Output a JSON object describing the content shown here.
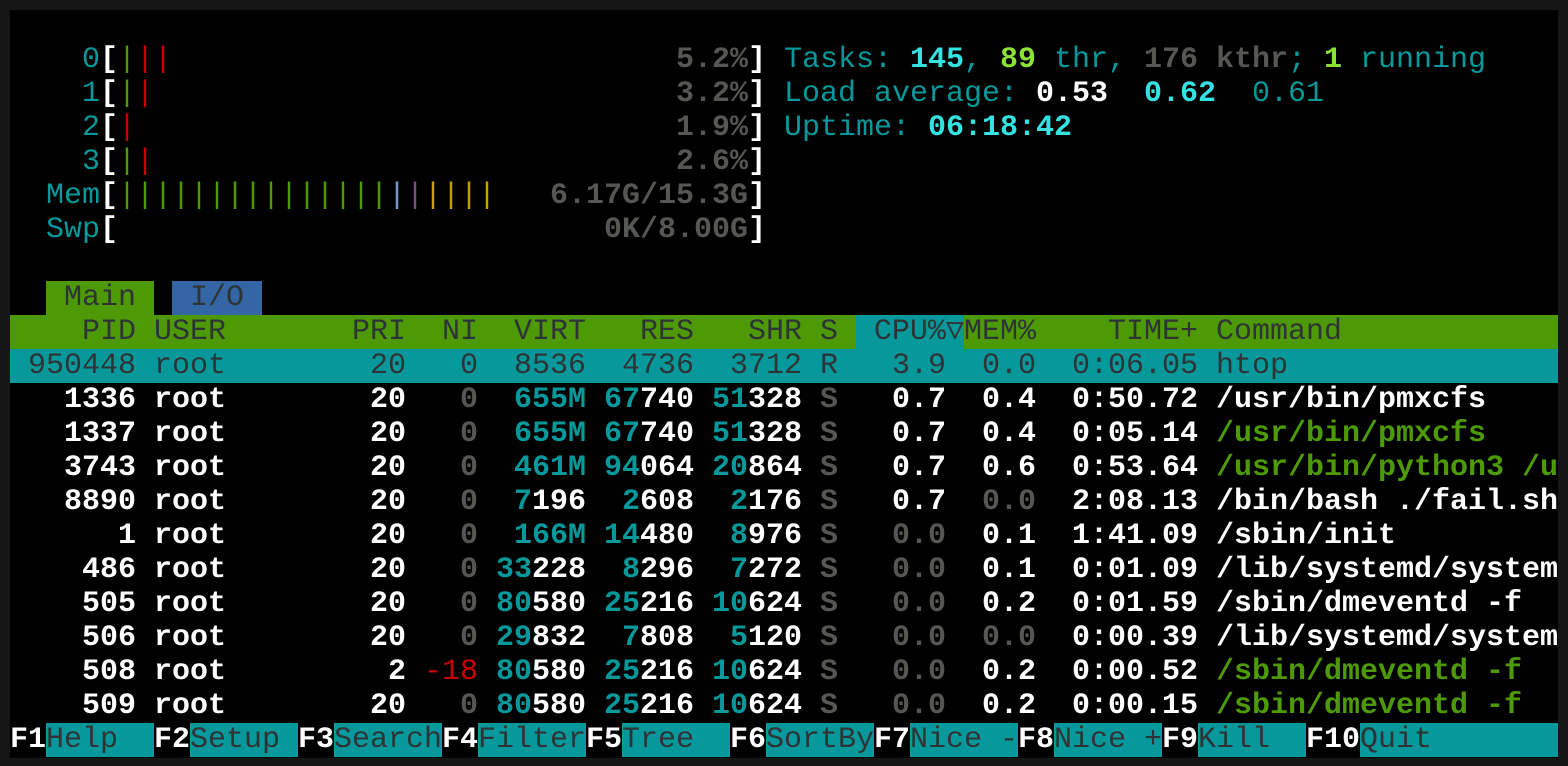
{
  "colors": {
    "teal": "#06989a",
    "green": "#4e9a06",
    "bright_cyan": "#34e2e2",
    "bright_green": "#8ae234",
    "red": "#cc0000",
    "gray": "#555753",
    "tab_blue": "#3465a4"
  },
  "meters": {
    "cpus": [
      {
        "label": "0",
        "value": "5.2%",
        "bars": [
          "green",
          "red",
          "red"
        ]
      },
      {
        "label": "1",
        "value": "3.2%",
        "bars": [
          "green",
          "red"
        ]
      },
      {
        "label": "2",
        "value": "1.9%",
        "bars": [
          "red"
        ]
      },
      {
        "label": "3",
        "value": "2.6%",
        "bars": [
          "green",
          "red"
        ]
      }
    ],
    "mem": {
      "label": "Mem",
      "value": "6.17G/15.3G",
      "bars": [
        "green",
        "green",
        "green",
        "green",
        "green",
        "green",
        "green",
        "green",
        "green",
        "green",
        "green",
        "green",
        "green",
        "green",
        "green",
        "blue",
        "purple",
        "orange",
        "orange",
        "orange",
        "orange"
      ]
    },
    "swp": {
      "label": "Swp",
      "value": "0K/8.00G",
      "bars": []
    }
  },
  "summary": {
    "tasks_label": "Tasks: ",
    "tasks": "145",
    "sep1": ", ",
    "threads": "89",
    "thr_label": " thr, ",
    "kthreads": "176",
    "kthr_label": " kthr",
    "sep2": "; ",
    "running": "1",
    "running_label": " running",
    "load_label": "Load average: ",
    "load1": "0.53",
    "load5": "0.62",
    "load15": "0.61",
    "uptime_label": "Uptime: ",
    "uptime": "06:18:42"
  },
  "tabs": [
    {
      "label": "Main",
      "active": true
    },
    {
      "label": "I/O",
      "active": false
    }
  ],
  "columns": {
    "pid": "PID",
    "user": "USER",
    "pri": "PRI",
    "ni": "NI",
    "virt": "VIRT",
    "res": "RES",
    "shr": "SHR",
    "s": "S",
    "cpu": "CPU%▽",
    "mem": "MEM%",
    "time": "TIME+",
    "command": "Command"
  },
  "sort_column": "cpu",
  "processes": [
    {
      "pid": "950448",
      "user": "root",
      "pri": "20",
      "ni": "0",
      "virt": "8536",
      "res": "4736",
      "shr": "3712",
      "s": "R",
      "cpu": "3.9",
      "mem": "0.0",
      "time": "0:06.05",
      "command": "htop",
      "selected": true,
      "thread": false
    },
    {
      "pid": "1336",
      "user": "root",
      "pri": "20",
      "ni": "0",
      "virt": "655M",
      "res": "67740",
      "shr": "51328",
      "s": "S",
      "cpu": "0.7",
      "mem": "0.4",
      "time": "0:50.72",
      "command": "/usr/bin/pmxcfs",
      "thread": false
    },
    {
      "pid": "1337",
      "user": "root",
      "pri": "20",
      "ni": "0",
      "virt": "655M",
      "res": "67740",
      "shr": "51328",
      "s": "S",
      "cpu": "0.7",
      "mem": "0.4",
      "time": "0:05.14",
      "command": "/usr/bin/pmxcfs",
      "thread": true
    },
    {
      "pid": "3743",
      "user": "root",
      "pri": "20",
      "ni": "0",
      "virt": "461M",
      "res": "94064",
      "shr": "20864",
      "s": "S",
      "cpu": "0.7",
      "mem": "0.6",
      "time": "0:53.64",
      "command": "/usr/bin/python3 /u",
      "thread": true
    },
    {
      "pid": "8890",
      "user": "root",
      "pri": "20",
      "ni": "0",
      "virt": "7196",
      "res": "2608",
      "shr": "2176",
      "s": "S",
      "cpu": "0.7",
      "mem": "0.0",
      "time": "2:08.13",
      "command": "/bin/bash ./fail.sh",
      "thread": false
    },
    {
      "pid": "1",
      "user": "root",
      "pri": "20",
      "ni": "0",
      "virt": "166M",
      "res": "14480",
      "shr": "8976",
      "s": "S",
      "cpu": "0.0",
      "mem": "0.1",
      "time": "1:41.09",
      "command": "/sbin/init",
      "thread": false
    },
    {
      "pid": "486",
      "user": "root",
      "pri": "20",
      "ni": "0",
      "virt": "33228",
      "res": "8296",
      "shr": "7272",
      "s": "S",
      "cpu": "0.0",
      "mem": "0.1",
      "time": "0:01.09",
      "command": "/lib/systemd/system",
      "thread": false
    },
    {
      "pid": "505",
      "user": "root",
      "pri": "20",
      "ni": "0",
      "virt": "80580",
      "res": "25216",
      "shr": "10624",
      "s": "S",
      "cpu": "0.0",
      "mem": "0.2",
      "time": "0:01.59",
      "command": "/sbin/dmeventd -f",
      "thread": false
    },
    {
      "pid": "506",
      "user": "root",
      "pri": "20",
      "ni": "0",
      "virt": "29832",
      "res": "7808",
      "shr": "5120",
      "s": "S",
      "cpu": "0.0",
      "mem": "0.0",
      "time": "0:00.39",
      "command": "/lib/systemd/system",
      "thread": false
    },
    {
      "pid": "508",
      "user": "root",
      "pri": "2",
      "ni": "-18",
      "virt": "80580",
      "res": "25216",
      "shr": "10624",
      "s": "S",
      "cpu": "0.0",
      "mem": "0.2",
      "time": "0:00.52",
      "command": "/sbin/dmeventd -f",
      "thread": true
    },
    {
      "pid": "509",
      "user": "root",
      "pri": "20",
      "ni": "0",
      "virt": "80580",
      "res": "25216",
      "shr": "10624",
      "s": "S",
      "cpu": "0.0",
      "mem": "0.2",
      "time": "0:00.15",
      "command": "/sbin/dmeventd -f",
      "thread": true
    }
  ],
  "function_keys": [
    {
      "key": "F1",
      "label": "Help"
    },
    {
      "key": "F2",
      "label": "Setup"
    },
    {
      "key": "F3",
      "label": "Search"
    },
    {
      "key": "F4",
      "label": "Filter"
    },
    {
      "key": "F5",
      "label": "Tree"
    },
    {
      "key": "F6",
      "label": "SortBy"
    },
    {
      "key": "F7",
      "label": "Nice -"
    },
    {
      "key": "F8",
      "label": "Nice +"
    },
    {
      "key": "F9",
      "label": "Kill"
    },
    {
      "key": "F10",
      "label": "Quit"
    }
  ]
}
